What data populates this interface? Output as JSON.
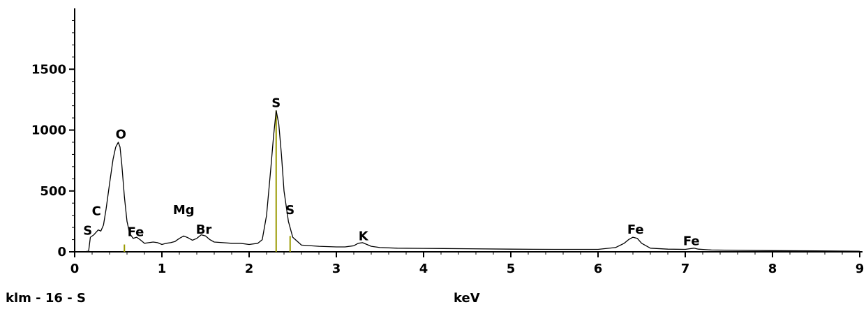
{
  "chart_data": {
    "type": "line",
    "xlabel": "keV",
    "ylabel": "",
    "sample_label": "klm - 16 - S",
    "xlim": [
      0,
      9
    ],
    "ylim": [
      0,
      2000
    ],
    "x_ticks": [
      0,
      1,
      2,
      3,
      4,
      5,
      6,
      7,
      8,
      9
    ],
    "x_tick_labels": [
      "0",
      "1",
      "2",
      "3",
      "4",
      "5",
      "6",
      "7",
      "8",
      "9"
    ],
    "y_ticks": [
      0,
      500,
      1000,
      1500
    ],
    "y_tick_labels": [
      "0",
      "500",
      "1000",
      "1500"
    ],
    "grid": false,
    "line_color": "#000000",
    "marker_color": "#9a9a00",
    "series": [
      {
        "x": [
          0.1,
          0.16,
          0.18,
          0.22,
          0.27,
          0.3,
          0.33,
          0.36,
          0.4,
          0.44,
          0.47,
          0.5,
          0.52,
          0.54,
          0.57,
          0.6,
          0.63,
          0.67,
          0.71,
          0.75,
          0.8,
          0.85,
          0.9,
          0.95,
          1.0,
          1.05,
          1.1,
          1.15,
          1.2,
          1.25,
          1.3,
          1.35,
          1.4,
          1.45,
          1.5,
          1.55,
          1.6,
          1.7,
          1.8,
          1.9,
          2.0,
          2.1,
          2.15,
          2.2,
          2.25,
          2.28,
          2.31,
          2.34,
          2.37,
          2.4,
          2.45,
          2.5,
          2.6,
          2.8,
          3.0,
          3.1,
          3.2,
          3.25,
          3.3,
          3.35,
          3.4,
          3.5,
          3.7,
          4.0,
          4.5,
          5.0,
          5.5,
          6.0,
          6.2,
          6.3,
          6.35,
          6.4,
          6.45,
          6.5,
          6.6,
          6.8,
          7.0,
          7.05,
          7.1,
          7.15,
          7.3,
          7.6,
          8.0,
          8.5,
          9.0
        ],
        "y": [
          0,
          5,
          120,
          140,
          180,
          170,
          220,
          350,
          560,
          760,
          860,
          900,
          860,
          720,
          450,
          250,
          150,
          110,
          120,
          100,
          70,
          75,
          80,
          75,
          60,
          70,
          75,
          85,
          110,
          130,
          115,
          95,
          110,
          140,
          130,
          100,
          80,
          75,
          70,
          70,
          60,
          70,
          100,
          300,
          700,
          950,
          1160,
          1050,
          800,
          500,
          250,
          120,
          55,
          45,
          40,
          40,
          50,
          70,
          75,
          60,
          45,
          35,
          30,
          28,
          25,
          22,
          20,
          20,
          35,
          70,
          100,
          120,
          110,
          70,
          30,
          22,
          20,
          25,
          30,
          22,
          15,
          12,
          10,
          8,
          5
        ]
      }
    ],
    "markers": [
      {
        "x": 0.57,
        "y": 60
      },
      {
        "x": 2.31,
        "y": 1160
      },
      {
        "x": 2.47,
        "y": 130
      }
    ],
    "annotations": [
      {
        "text": "S",
        "x": 0.15,
        "y": 140
      },
      {
        "text": "C",
        "x": 0.25,
        "y": 300
      },
      {
        "text": "O",
        "x": 0.53,
        "y": 930
      },
      {
        "text": "Fe",
        "x": 0.7,
        "y": 130
      },
      {
        "text": "Mg",
        "x": 1.25,
        "y": 310
      },
      {
        "text": "Br",
        "x": 1.48,
        "y": 150
      },
      {
        "text": "S",
        "x": 2.31,
        "y": 1190
      },
      {
        "text": "S",
        "x": 2.47,
        "y": 310
      },
      {
        "text": "K",
        "x": 3.31,
        "y": 95
      },
      {
        "text": "Fe",
        "x": 6.43,
        "y": 150
      },
      {
        "text": "Fe",
        "x": 7.07,
        "y": 55
      }
    ]
  }
}
